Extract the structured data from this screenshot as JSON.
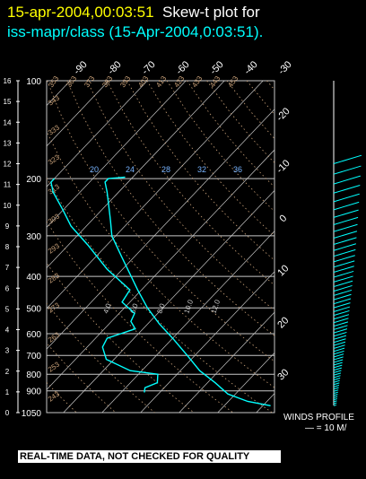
{
  "header": {
    "title_date": "15-apr-2004,00:03:51",
    "title_rest": "Skew-t plot for",
    "subtitle": "iss-mapr/class (15-Apr-2004,0:03:51)."
  },
  "footer": {
    "quality_banner": "REAL-TIME DATA, NOT CHECKED FOR QUALITY",
    "winds_title": "WINDS PROFILE",
    "winds_scale": "— = 10 M/"
  },
  "colors": {
    "background": "#000000",
    "sounding": "#00ffff",
    "grid": "#c8c8c8",
    "dry_adiabat": "#c8a078",
    "mixing_ratio": "#78b4ff",
    "title_date": "#ffff00",
    "subtitle": "#00ffff"
  },
  "chart_data": {
    "type": "line",
    "chart_kind": "skew-t log-p",
    "pressure_levels_hpa": [
      100,
      200,
      300,
      400,
      500,
      600,
      700,
      800,
      900,
      1050
    ],
    "pressure_tick_labels": [
      "100",
      "200",
      "300",
      "400",
      "500",
      "600",
      "700",
      "800",
      "900",
      "1050"
    ],
    "height_ticks_km": [
      "16",
      "15",
      "14",
      "13",
      "12",
      "11",
      "10",
      "9",
      "8",
      "7",
      "6",
      "5",
      "4",
      "3",
      "2",
      "1",
      "0"
    ],
    "top_temperature_labels": [
      "-90",
      "-80",
      "-70",
      "-60",
      "-50",
      "-40",
      "-30"
    ],
    "right_temperature_labels": [
      "-20",
      "-10",
      "0",
      "10",
      "20",
      "30"
    ],
    "isotherms_c": [
      -100,
      -90,
      -80,
      -70,
      -60,
      -50,
      -40,
      -30,
      -20,
      -10,
      0,
      10,
      20,
      30,
      40
    ],
    "dry_adiabat_labels": [
      "243",
      "253",
      "263",
      "273",
      "283",
      "293",
      "303",
      "313",
      "323",
      "333",
      "343",
      "353",
      "363",
      "373",
      "383",
      "393",
      "403",
      "413",
      "423",
      "433",
      "443",
      "453"
    ],
    "mixing_ratio_labels": [
      "20",
      "24",
      "28",
      "32",
      "36"
    ],
    "saturated_adiabat_labels": [
      "4.0",
      "6.0",
      "8.0",
      "10.0",
      "12.0"
    ],
    "ylim_hpa": [
      100,
      1050
    ],
    "series": [
      {
        "values": [
          {
            "p": 1000,
            "t": 32
          },
          {
            "p": 970,
            "t": 25
          },
          {
            "p": 920,
            "t": 18
          },
          {
            "p": 850,
            "t": 12
          },
          {
            "p": 780,
            "t": 5
          },
          {
            "p": 700,
            "t": -2
          },
          {
            "p": 620,
            "t": -10
          },
          {
            "p": 560,
            "t": -17
          },
          {
            "p": 500,
            "t": -24
          },
          {
            "p": 440,
            "t": -31
          },
          {
            "p": 400,
            "t": -36
          },
          {
            "p": 350,
            "t": -43
          },
          {
            "p": 300,
            "t": -51
          },
          {
            "p": 270,
            "t": -55
          },
          {
            "p": 250,
            "t": -58
          },
          {
            "p": 220,
            "t": -63
          },
          {
            "p": 205,
            "t": -66
          },
          {
            "p": 200,
            "t": -66
          },
          {
            "p": 198,
            "t": -62
          }
        ]
      },
      {
        "values": [
          {
            "p": 910,
            "t": -4
          },
          {
            "p": 880,
            "t": -5
          },
          {
            "p": 850,
            "t": -3
          },
          {
            "p": 800,
            "t": -5
          },
          {
            "p": 780,
            "t": -13
          },
          {
            "p": 720,
            "t": -22
          },
          {
            "p": 660,
            "t": -26
          },
          {
            "p": 620,
            "t": -27
          },
          {
            "p": 580,
            "t": -22
          },
          {
            "p": 550,
            "t": -25
          },
          {
            "p": 520,
            "t": -26
          },
          {
            "p": 480,
            "t": -32
          },
          {
            "p": 440,
            "t": -33
          },
          {
            "p": 380,
            "t": -44
          },
          {
            "p": 320,
            "t": -55
          },
          {
            "p": 280,
            "t": -64
          },
          {
            "p": 250,
            "t": -70
          },
          {
            "p": 220,
            "t": -77
          },
          {
            "p": 205,
            "t": -80
          },
          {
            "p": 200,
            "t": -80
          }
        ]
      }
    ],
    "winds_profile": {
      "barb_count": 60,
      "base_hpa": 1000,
      "top_hpa": 180
    }
  }
}
